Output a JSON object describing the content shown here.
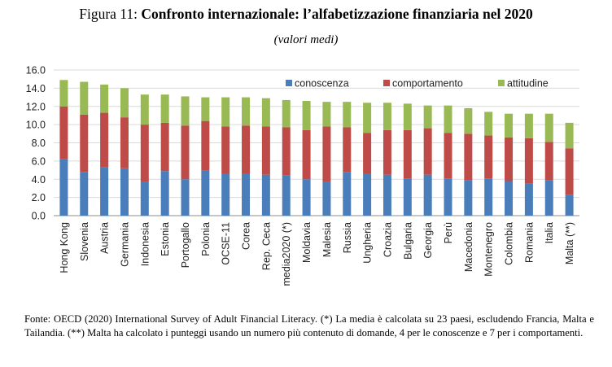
{
  "figure": {
    "label": "Figura 11:",
    "title": "Confronto internazionale: l’alfabetizzazione finanziaria nel 2020",
    "subtitle": "(valori medi)",
    "note": "Fonte: OECD (2020) International Survey of Adult Financial Literacy. (*) La media è calcolata su 23 paesi, escludendo Francia, Malta e Tailandia. (**) Malta ha calcolato i punteggi usando un numero più contenuto di domande, 4 per le conoscenze e 7 per i comportamenti."
  },
  "colors": {
    "conoscenza": "#4a7ebb",
    "comportamento": "#be4b48",
    "attitudine": "#98b954"
  },
  "chart_data": {
    "type": "bar",
    "stacked": true,
    "categories": [
      "Hong Kong",
      "Slovenia",
      "Austria",
      "Germania",
      "Indonesia",
      "Estonia",
      "Portogallo",
      "Polonia",
      "OCSE-11",
      "Corea",
      "Rep. Ceca",
      "media2020 (*)",
      "Moldavia",
      "Malesia",
      "Russia",
      "Ungheria",
      "Croazia",
      "Bulgaria",
      "Georgia",
      "Perù",
      "Macedonia",
      "Montenegro",
      "Colombia",
      "Romania",
      "Italia",
      "Malta (**)"
    ],
    "series": [
      {
        "name": "conoscenza",
        "values": [
          6.2,
          4.8,
          5.3,
          5.2,
          3.7,
          4.9,
          4.0,
          5.0,
          4.6,
          4.6,
          4.5,
          4.4,
          4.0,
          3.7,
          4.8,
          4.6,
          4.5,
          4.1,
          4.5,
          4.1,
          3.9,
          4.1,
          3.8,
          3.5,
          3.9,
          2.3
        ]
      },
      {
        "name": "comportamento",
        "values": [
          5.8,
          6.3,
          6.0,
          5.6,
          6.3,
          5.3,
          5.9,
          5.4,
          5.2,
          5.3,
          5.3,
          5.3,
          5.4,
          6.1,
          4.9,
          4.5,
          4.9,
          5.3,
          5.1,
          5.0,
          5.1,
          4.7,
          4.8,
          5.0,
          4.2,
          5.1
        ]
      },
      {
        "name": "attitudine",
        "values": [
          2.9,
          3.6,
          3.1,
          3.2,
          3.3,
          3.1,
          3.2,
          2.6,
          3.2,
          3.1,
          3.1,
          3.0,
          3.2,
          2.7,
          2.8,
          3.3,
          3.0,
          2.9,
          2.5,
          3.0,
          2.8,
          2.6,
          2.6,
          2.7,
          3.1,
          2.8
        ]
      }
    ],
    "ylim": [
      0,
      16
    ],
    "yticks": [
      "0.0",
      "2.0",
      "4.0",
      "6.0",
      "8.0",
      "10.0",
      "12.0",
      "14.0",
      "16.0"
    ],
    "grid": true,
    "legend_position": "top-right"
  }
}
